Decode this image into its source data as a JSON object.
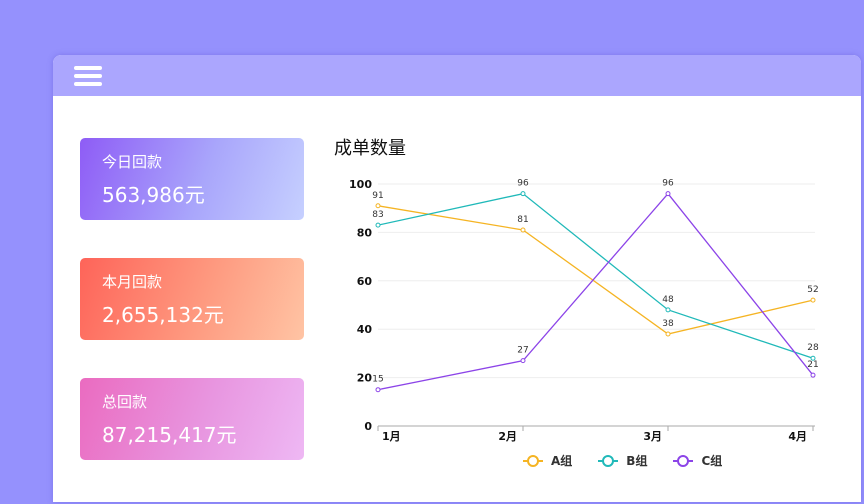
{
  "header": {
    "menu_icon": "hamburger-menu-icon"
  },
  "cards": [
    {
      "label": "今日回款",
      "value": "563,986元"
    },
    {
      "label": "本月回款",
      "value": "2,655,132元"
    },
    {
      "label": "总回款",
      "value": "87,215,417元"
    }
  ],
  "chart_title": "成单数量",
  "legend": [
    {
      "name": "A组",
      "color": "#f5b423"
    },
    {
      "name": "B组",
      "color": "#20b9b9"
    },
    {
      "name": "C组",
      "color": "#8c44e8"
    }
  ],
  "chart_data": {
    "type": "line",
    "title": "成单数量",
    "categories": [
      "1月",
      "2月",
      "3月",
      "4月"
    ],
    "series": [
      {
        "name": "A组",
        "values": [
          91,
          81,
          38,
          52
        ],
        "color": "#f5b423"
      },
      {
        "name": "B组",
        "values": [
          83,
          96,
          48,
          28
        ],
        "color": "#20b9b9"
      },
      {
        "name": "C组",
        "values": [
          15,
          27,
          96,
          21
        ],
        "color": "#8c44e8"
      }
    ],
    "xlabel": "",
    "ylabel": "",
    "ylim": [
      0,
      100
    ],
    "yticks": [
      0,
      20,
      40,
      60,
      80,
      100
    ],
    "grid": true,
    "legend_position": "bottom",
    "data_labels": true
  }
}
